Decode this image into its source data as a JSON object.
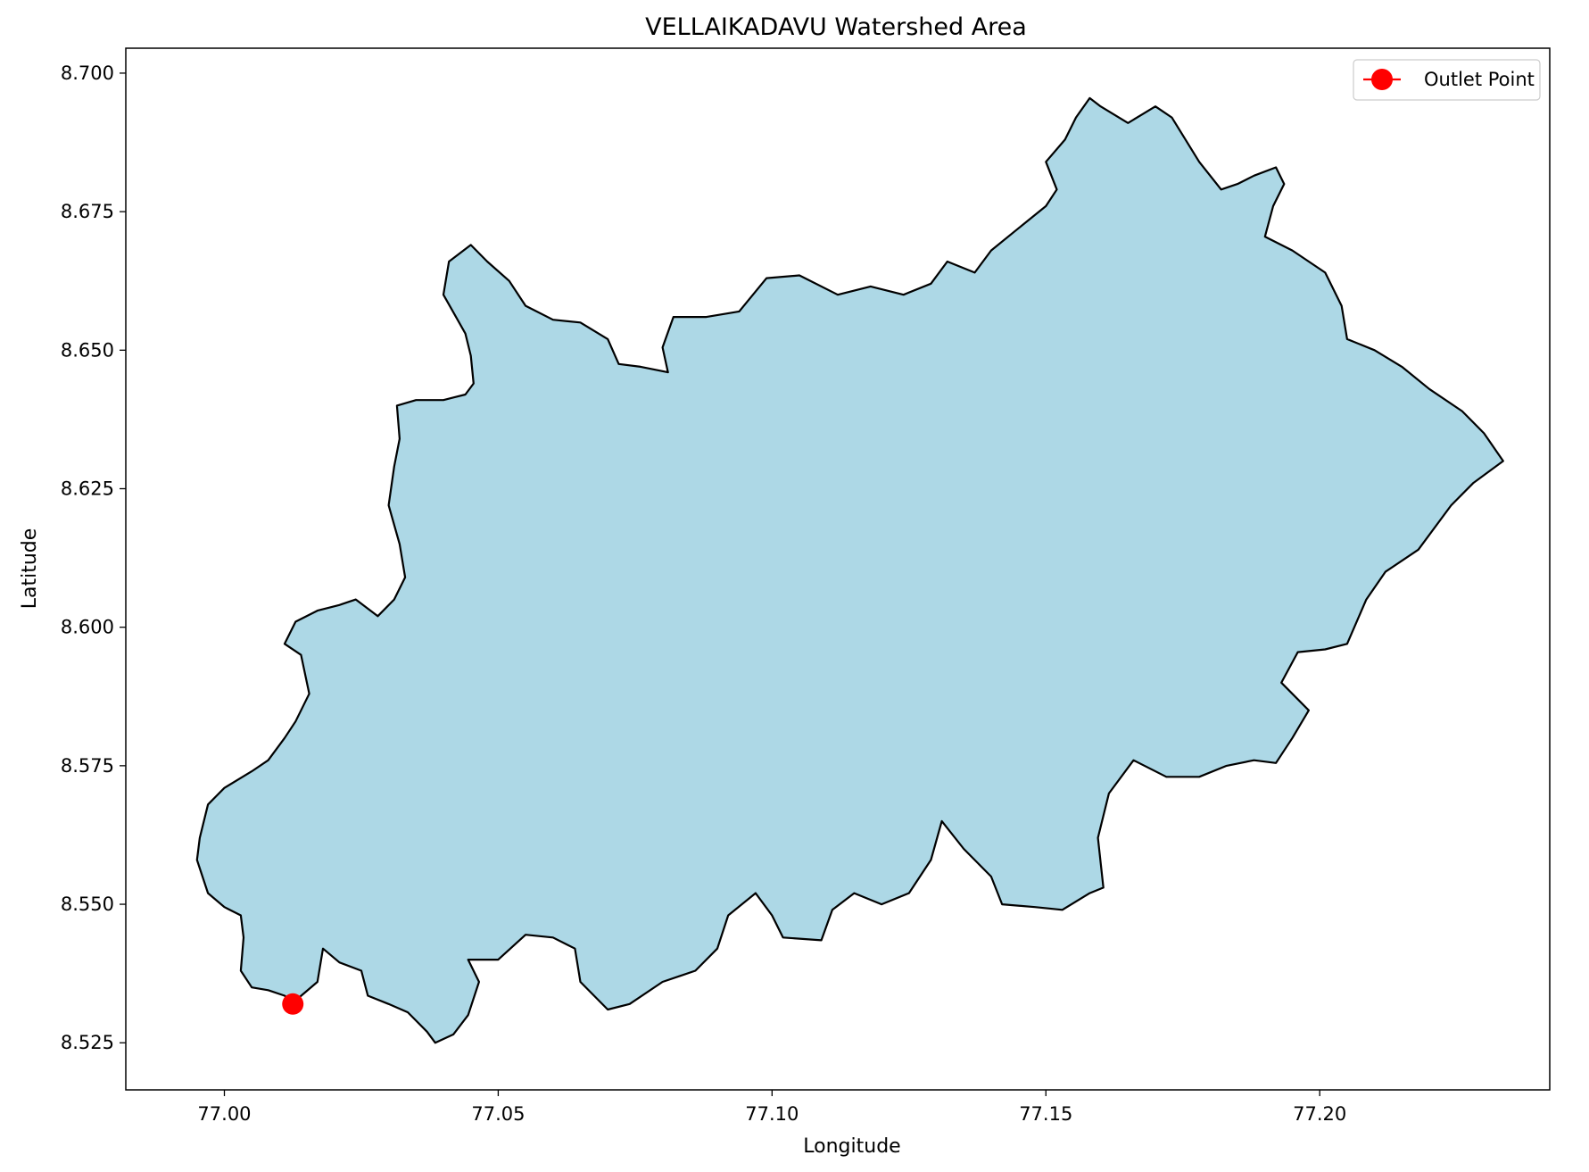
{
  "chart_data": {
    "type": "map",
    "title": "VELLAIKADAVU Watershed Area",
    "xlabel": "Longitude",
    "ylabel": "Latitude",
    "xlim": [
      76.982,
      77.242
    ],
    "ylim": [
      8.5165,
      8.7045
    ],
    "xticks": [
      77.0,
      77.05,
      77.1,
      77.15,
      77.2
    ],
    "xtick_labels": [
      "77.00",
      "77.05",
      "77.10",
      "77.15",
      "77.20"
    ],
    "yticks": [
      8.525,
      8.55,
      8.575,
      8.6,
      8.625,
      8.65,
      8.675,
      8.7
    ],
    "ytick_labels": [
      "8.525",
      "8.550",
      "8.575",
      "8.600",
      "8.625",
      "8.650",
      "8.675",
      "8.700"
    ],
    "grid": false,
    "legend": {
      "placement": "top-right",
      "entries": [
        {
          "label": "Outlet Point",
          "color": "#ff0000",
          "marker": "circle"
        }
      ]
    },
    "colors": {
      "watershed_fill": "#add8e6",
      "watershed_edge": "#000000",
      "outlet": "#ff0000"
    },
    "outlet_point": {
      "lon": 77.0125,
      "lat": 8.532
    },
    "watershed_boundary": [
      [
        77.0125,
        8.5322
      ],
      [
        77.017,
        8.536
      ],
      [
        77.018,
        8.542
      ],
      [
        77.021,
        8.5395
      ],
      [
        77.025,
        8.538
      ],
      [
        77.0262,
        8.5335
      ],
      [
        77.03,
        8.532
      ],
      [
        77.0335,
        8.5305
      ],
      [
        77.037,
        8.527
      ],
      [
        77.0385,
        8.525
      ],
      [
        77.0418,
        8.5265
      ],
      [
        77.0445,
        8.53
      ],
      [
        77.0465,
        8.536
      ],
      [
        77.0445,
        8.54
      ],
      [
        77.05,
        8.54
      ],
      [
        77.055,
        8.5445
      ],
      [
        77.06,
        8.544
      ],
      [
        77.064,
        8.542
      ],
      [
        77.065,
        8.536
      ],
      [
        77.07,
        8.531
      ],
      [
        77.074,
        8.532
      ],
      [
        77.08,
        8.536
      ],
      [
        77.086,
        8.538
      ],
      [
        77.09,
        8.542
      ],
      [
        77.092,
        8.548
      ],
      [
        77.097,
        8.552
      ],
      [
        77.1,
        8.548
      ],
      [
        77.102,
        8.544
      ],
      [
        77.109,
        8.5435
      ],
      [
        77.111,
        8.549
      ],
      [
        77.115,
        8.552
      ],
      [
        77.12,
        8.55
      ],
      [
        77.125,
        8.552
      ],
      [
        77.129,
        8.558
      ],
      [
        77.131,
        8.565
      ],
      [
        77.135,
        8.56
      ],
      [
        77.14,
        8.555
      ],
      [
        77.142,
        8.55
      ],
      [
        77.148,
        8.5495
      ],
      [
        77.153,
        8.549
      ],
      [
        77.158,
        8.552
      ],
      [
        77.1605,
        8.553
      ],
      [
        77.1595,
        8.562
      ],
      [
        77.1615,
        8.57
      ],
      [
        77.166,
        8.576
      ],
      [
        77.172,
        8.573
      ],
      [
        77.178,
        8.573
      ],
      [
        77.183,
        8.575
      ],
      [
        77.188,
        8.576
      ],
      [
        77.192,
        8.5755
      ],
      [
        77.195,
        8.58
      ],
      [
        77.198,
        8.585
      ],
      [
        77.193,
        8.59
      ],
      [
        77.196,
        8.5955
      ],
      [
        77.201,
        8.596
      ],
      [
        77.205,
        8.597
      ],
      [
        77.2085,
        8.605
      ],
      [
        77.212,
        8.61
      ],
      [
        77.218,
        8.614
      ],
      [
        77.224,
        8.622
      ],
      [
        77.228,
        8.626
      ],
      [
        77.2335,
        8.63
      ],
      [
        77.23,
        8.635
      ],
      [
        77.226,
        8.639
      ],
      [
        77.22,
        8.643
      ],
      [
        77.215,
        8.647
      ],
      [
        77.21,
        8.65
      ],
      [
        77.205,
        8.652
      ],
      [
        77.204,
        8.658
      ],
      [
        77.201,
        8.664
      ],
      [
        77.195,
        8.668
      ],
      [
        77.19,
        8.6705
      ],
      [
        77.1915,
        8.676
      ],
      [
        77.1935,
        8.68
      ],
      [
        77.192,
        8.683
      ],
      [
        77.188,
        8.6815
      ],
      [
        77.185,
        8.68
      ],
      [
        77.182,
        8.679
      ],
      [
        77.178,
        8.684
      ],
      [
        77.173,
        8.692
      ],
      [
        77.17,
        8.694
      ],
      [
        77.165,
        8.691
      ],
      [
        77.16,
        8.694
      ],
      [
        77.158,
        8.6955
      ],
      [
        77.1555,
        8.692
      ],
      [
        77.1535,
        8.688
      ],
      [
        77.15,
        8.684
      ],
      [
        77.152,
        8.679
      ],
      [
        77.15,
        8.676
      ],
      [
        77.145,
        8.672
      ],
      [
        77.14,
        8.668
      ],
      [
        77.137,
        8.664
      ],
      [
        77.132,
        8.666
      ],
      [
        77.129,
        8.662
      ],
      [
        77.124,
        8.66
      ],
      [
        77.118,
        8.6615
      ],
      [
        77.112,
        8.66
      ],
      [
        77.105,
        8.6635
      ],
      [
        77.099,
        8.663
      ],
      [
        77.094,
        8.657
      ],
      [
        77.088,
        8.656
      ],
      [
        77.082,
        8.656
      ],
      [
        77.08,
        8.6505
      ],
      [
        77.081,
        8.646
      ],
      [
        77.076,
        8.647
      ],
      [
        77.072,
        8.6475
      ],
      [
        77.07,
        8.652
      ],
      [
        77.065,
        8.655
      ],
      [
        77.06,
        8.6555
      ],
      [
        77.055,
        8.658
      ],
      [
        77.052,
        8.6625
      ],
      [
        77.048,
        8.666
      ],
      [
        77.045,
        8.669
      ],
      [
        77.041,
        8.666
      ],
      [
        77.04,
        8.66
      ],
      [
        77.044,
        8.653
      ],
      [
        77.045,
        8.649
      ],
      [
        77.0455,
        8.644
      ],
      [
        77.044,
        8.642
      ],
      [
        77.04,
        8.641
      ],
      [
        77.035,
        8.641
      ],
      [
        77.0315,
        8.64
      ],
      [
        77.032,
        8.634
      ],
      [
        77.031,
        8.629
      ],
      [
        77.03,
        8.622
      ],
      [
        77.032,
        8.615
      ],
      [
        77.033,
        8.609
      ],
      [
        77.031,
        8.605
      ],
      [
        77.028,
        8.602
      ],
      [
        77.024,
        8.605
      ],
      [
        77.021,
        8.604
      ],
      [
        77.017,
        8.603
      ],
      [
        77.013,
        8.601
      ],
      [
        77.011,
        8.597
      ],
      [
        77.014,
        8.595
      ],
      [
        77.0155,
        8.588
      ],
      [
        77.013,
        8.583
      ],
      [
        77.011,
        8.58
      ],
      [
        77.008,
        8.576
      ],
      [
        77.005,
        8.574
      ],
      [
        77.0,
        8.571
      ],
      [
        76.997,
        8.568
      ],
      [
        76.9955,
        8.562
      ],
      [
        76.995,
        8.558
      ],
      [
        76.997,
        8.552
      ],
      [
        77.0,
        8.5495
      ],
      [
        77.003,
        8.548
      ],
      [
        77.0035,
        8.544
      ],
      [
        77.003,
        8.538
      ],
      [
        77.005,
        8.535
      ],
      [
        77.008,
        8.5345
      ],
      [
        77.011,
        8.5335
      ],
      [
        77.0125,
        8.5322
      ]
    ]
  }
}
